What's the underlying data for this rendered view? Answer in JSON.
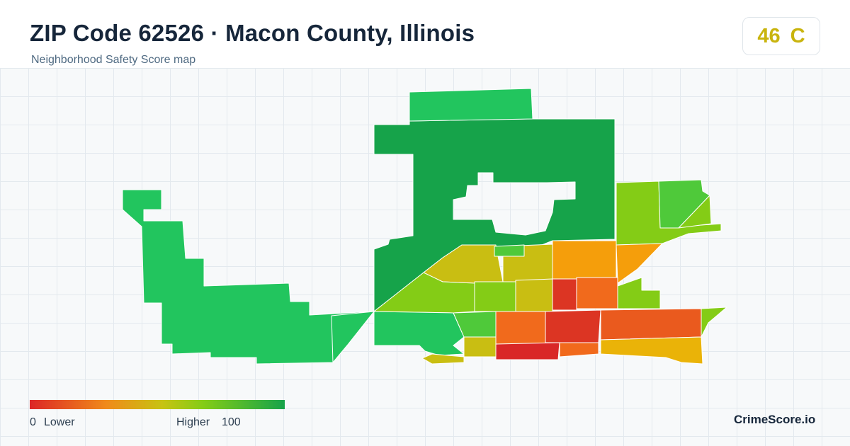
{
  "header": {
    "title": "ZIP Code 62526 · Macon County, Illinois",
    "subtitle": "Neighborhood Safety Score map"
  },
  "score_badge": {
    "score": "46",
    "grade": "C",
    "color": "#c9b40e"
  },
  "legend": {
    "min_value": "0",
    "min_label": "Lower",
    "max_label": "Higher",
    "max_value": "100",
    "colors": [
      "#dc2626",
      "#f08a1a",
      "#c7c313",
      "#84cc16",
      "#16a34a"
    ]
  },
  "brand": "CrimeScore.io",
  "map": {
    "colors": {
      "very_high": "#16a34a",
      "high": "#22c55e",
      "mid_high": "#4fc93a",
      "lime": "#84cc16",
      "yellow": "#c9be12",
      "amber": "#eab308",
      "orange": "#f59e0b",
      "dark_orange": "#f16a1c",
      "red_orange": "#ea5a1e",
      "red": "#dc3523",
      "deep_red": "#d92727"
    }
  }
}
